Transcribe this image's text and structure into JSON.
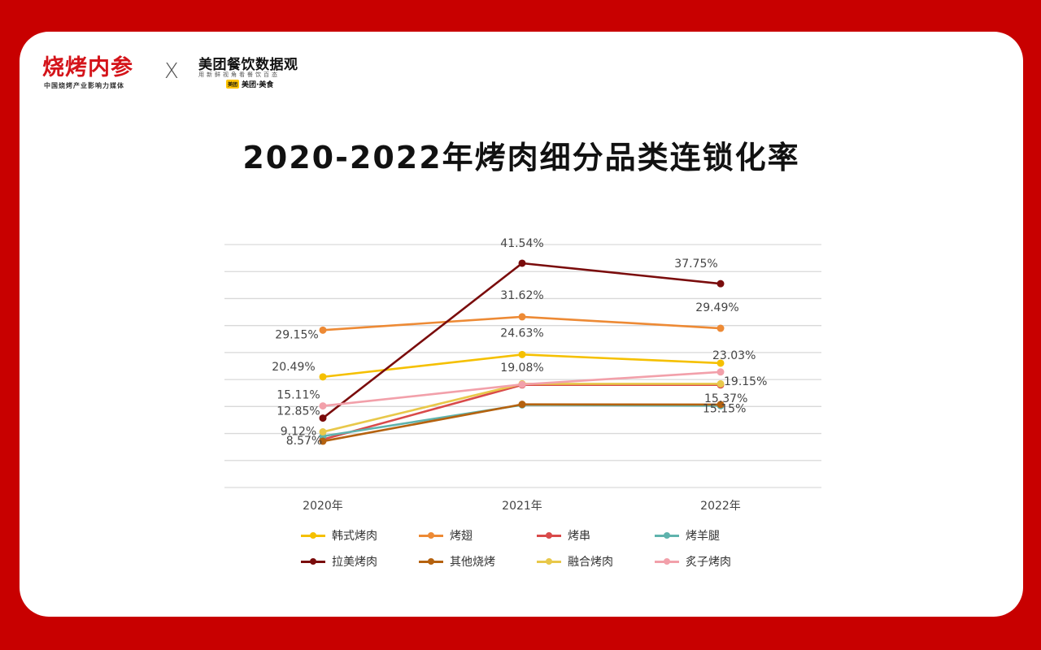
{
  "header": {
    "logo_text": "烧烤内参",
    "logo_tagline": "中国烧烤产业影响力媒体",
    "separator": "X",
    "partner_name": "美团餐饮数据观",
    "partner_tagline": "用新鲜视角看餐饮百态",
    "partner_badge": "美团",
    "partner_brand": "美团·美食"
  },
  "chart_data": {
    "type": "line",
    "title": "2020-2022年烤肉细分品类连锁化率",
    "categories": [
      "2020年",
      "2021年",
      "2022年"
    ],
    "ylim": [
      0,
      45
    ],
    "grid": true,
    "legend_position": "bottom",
    "series": [
      {
        "name": "韩式烤肉",
        "color": "#f5c000",
        "values": [
          20.49,
          24.63,
          23.03
        ]
      },
      {
        "name": "烤翅",
        "color": "#ed8a35",
        "values": [
          29.15,
          31.62,
          29.49
        ]
      },
      {
        "name": "烤串",
        "color": "#d94a4a",
        "values": [
          8.9,
          19.0,
          19.0
        ]
      },
      {
        "name": "烤羊腿",
        "color": "#5fb3ad",
        "values": [
          9.5,
          15.3,
          15.15
        ]
      },
      {
        "name": "拉美烤肉",
        "color": "#7a0c0c",
        "values": [
          12.85,
          41.54,
          37.75
        ]
      },
      {
        "name": "其他烧烤",
        "color": "#b5620f",
        "values": [
          8.57,
          15.4,
          15.37
        ]
      },
      {
        "name": "融合烤肉",
        "color": "#e8c84a",
        "values": [
          10.3,
          19.2,
          19.2
        ]
      },
      {
        "name": "炙子烤肉",
        "color": "#f2a0aa",
        "values": [
          15.11,
          19.08,
          21.4
        ]
      }
    ],
    "annotations": [
      {
        "text": "41.54%",
        "category": "2021年",
        "value": 41.54
      },
      {
        "text": "37.75%",
        "category": "2022年",
        "value": 37.75
      },
      {
        "text": "31.62%",
        "category": "2021年",
        "value": 31.62
      },
      {
        "text": "29.15%",
        "category": "2020年",
        "value": 29.15
      },
      {
        "text": "29.49%",
        "category": "2022年",
        "value": 29.49
      },
      {
        "text": "24.63%",
        "category": "2021年",
        "value": 24.63
      },
      {
        "text": "23.03%",
        "category": "2022年",
        "value": 23.03
      },
      {
        "text": "20.49%",
        "category": "2020年",
        "value": 20.49
      },
      {
        "text": "19.08%",
        "category": "2021年",
        "value": 19.08
      },
      {
        "text": "19.15%",
        "category": "2022年",
        "value": 19.15
      },
      {
        "text": "15.37%",
        "category": "2022年",
        "value": 15.37
      },
      {
        "text": "15.15%",
        "category": "2022年",
        "value": 15.15
      },
      {
        "text": "15.11%",
        "category": "2020年",
        "value": 15.11
      },
      {
        "text": "12.85%",
        "category": "2020年",
        "value": 12.85
      },
      {
        "text": "9.12%",
        "category": "2020年",
        "value": 9.12
      },
      {
        "text": "8.57%",
        "category": "2020年",
        "value": 8.57
      }
    ]
  }
}
